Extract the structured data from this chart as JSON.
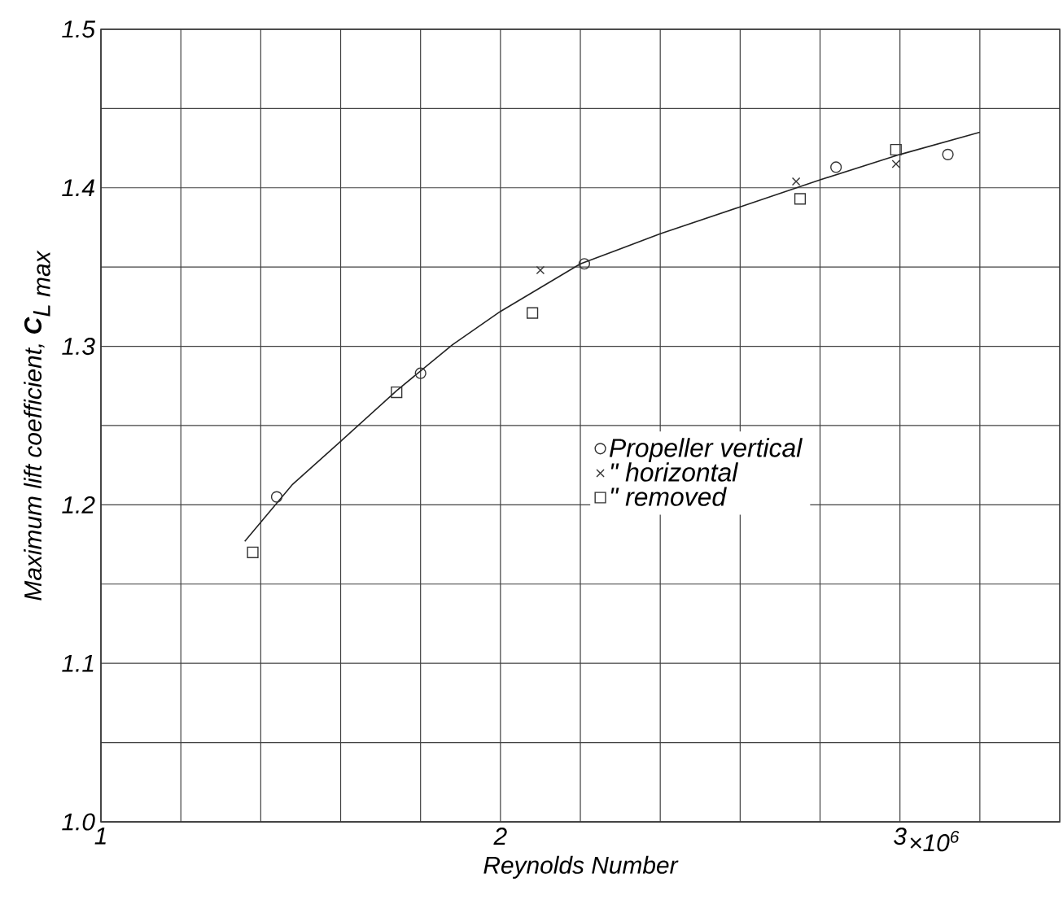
{
  "chart_data": {
    "type": "scatter",
    "xlabel": "Reynolds Number",
    "ylabel": "\\textit{Maximum lift coefficient, }\\textbf{\\textit{C}}_{\\textit{L max}}",
    "xlim": [
      1,
      3.4
    ],
    "ylim": [
      1.0,
      1.5
    ],
    "xticks": [
      1,
      {
        "value": 1.2,
        "label": null
      },
      {
        "value": 1.4,
        "label": null
      },
      {
        "value": 1.6,
        "label": null
      },
      {
        "value": 1.8,
        "label": null
      },
      2,
      {
        "value": 2.2,
        "label": null
      },
      {
        "value": 2.4,
        "label": null
      },
      {
        "value": 2.6,
        "label": null
      },
      {
        "value": 2.8,
        "label": null
      },
      3,
      {
        "value": 3.2,
        "label": null
      }
    ],
    "annotations": [
      "×10$^{6}$"
    ],
    "yticks": [
      {
        "value": 1.0,
        "label": "1.0"
      },
      {
        "value": 1.05,
        "label": null
      },
      {
        "value": 1.1,
        "label": "1.1"
      },
      {
        "value": 1.15,
        "label": null
      },
      {
        "value": 1.2,
        "label": "1.2"
      },
      {
        "value": 1.25,
        "label": null
      },
      {
        "value": 1.3,
        "label": "1.3"
      },
      {
        "value": 1.35,
        "label": null
      },
      {
        "value": 1.4,
        "label": "1.4"
      },
      {
        "value": 1.45,
        "label": null
      },
      {
        "value": 1.5,
        "label": "1.5"
      }
    ],
    "grid": true,
    "legend": "center",
    "series": [
      {
        "name": "Propeller vertical",
        "color": "#333333",
        "marker": "circle",
        "x": [
          1.44,
          1.8,
          2.21,
          2.84,
          3.12
        ],
        "values": [
          1.205,
          1.283,
          1.352,
          1.413,
          1.421
        ]
      },
      {
        "name": "\"  horizontal",
        "color": "#333333",
        "marker": "cross",
        "x": [
          2.1,
          2.74,
          2.99
        ],
        "values": [
          1.348,
          1.404,
          1.415
        ]
      },
      {
        "name": "\"  removed",
        "color": "#333333",
        "marker": "square",
        "x": [
          1.38,
          1.74,
          2.08,
          2.75,
          2.99
        ],
        "values": [
          1.17,
          1.271,
          1.321,
          1.393,
          1.424
        ]
      },
      {
        "type": "line",
        "color": "#222222",
        "marker": "none",
        "x": [
          1.36,
          1.48,
          1.6,
          1.74,
          1.88,
          2.0,
          2.2,
          2.4,
          2.6,
          2.8,
          3.0,
          3.2
        ],
        "values": [
          1.177,
          1.213,
          1.24,
          1.272,
          1.301,
          1.322,
          1.352,
          1.371,
          1.388,
          1.405,
          1.421,
          1.435
        ]
      }
    ]
  }
}
